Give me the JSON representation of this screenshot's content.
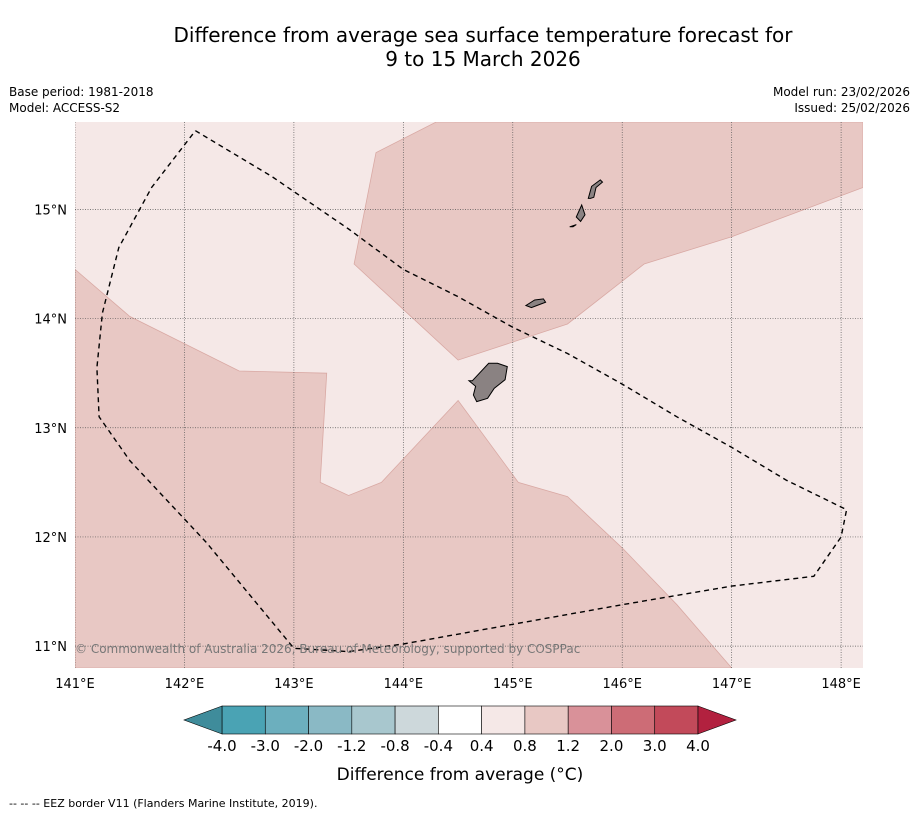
{
  "title": {
    "line1": "Difference from average sea surface temperature forecast for",
    "line2": "9 to 15 March 2026"
  },
  "meta": {
    "base_period": "Base period: 1981-2018",
    "model": "Model: ACCESS-S2",
    "model_run": "Model run: 23/02/2026",
    "issued": "Issued: 25/02/2026"
  },
  "map": {
    "lon_range": [
      141,
      148.2
    ],
    "lat_range": [
      10.8,
      15.8
    ],
    "lon_ticks": [
      {
        "value": 141,
        "label": "141°E"
      },
      {
        "value": 142,
        "label": "142°E"
      },
      {
        "value": 143,
        "label": "143°E"
      },
      {
        "value": 144,
        "label": "144°E"
      },
      {
        "value": 145,
        "label": "145°E"
      },
      {
        "value": 146,
        "label": "146°E"
      },
      {
        "value": 147,
        "label": "147°E"
      },
      {
        "value": 148,
        "label": "148°E"
      }
    ],
    "lat_ticks": [
      {
        "value": 15,
        "label": "15°N"
      },
      {
        "value": 14,
        "label": "14°N"
      },
      {
        "value": 13,
        "label": "13°N"
      },
      {
        "value": 12,
        "label": "12°N"
      },
      {
        "value": 11,
        "label": "11°N"
      }
    ],
    "background_category": "0.4 to 0.8",
    "regions": [
      {
        "name": "western-anomaly-region",
        "category": "0.8 to 1.2",
        "coords": [
          [
            141,
            14.45
          ],
          [
            141.5,
            14.02
          ],
          [
            142.5,
            13.52
          ],
          [
            143.3,
            13.5
          ],
          [
            143.24,
            12.5
          ],
          [
            143.5,
            12.38
          ],
          [
            143.8,
            12.5
          ],
          [
            144.5,
            13.25
          ],
          [
            145.05,
            12.5
          ],
          [
            145.5,
            12.37
          ],
          [
            146,
            11.9
          ],
          [
            146.5,
            11.38
          ],
          [
            147,
            10.8
          ],
          [
            141,
            10.8
          ]
        ]
      },
      {
        "name": "northern-anomaly-region",
        "category": "0.8 to 1.2",
        "coords": [
          [
            144.3,
            15.8
          ],
          [
            148.2,
            15.8
          ],
          [
            148.2,
            15.2
          ],
          [
            147,
            14.75
          ],
          [
            146.2,
            14.5
          ],
          [
            145.5,
            13.95
          ],
          [
            144.5,
            13.62
          ],
          [
            143.55,
            14.5
          ],
          [
            143.75,
            15.52
          ]
        ]
      }
    ],
    "islands": [
      {
        "name": "guam",
        "coords": [
          [
            144.63,
            13.43
          ],
          [
            144.78,
            13.59
          ],
          [
            144.86,
            13.59
          ],
          [
            144.95,
            13.56
          ],
          [
            144.93,
            13.44
          ],
          [
            144.83,
            13.36
          ],
          [
            144.77,
            13.27
          ],
          [
            144.67,
            13.24
          ],
          [
            144.64,
            13.3
          ],
          [
            144.66,
            13.38
          ],
          [
            144.6,
            13.43
          ]
        ]
      },
      {
        "name": "rota",
        "coords": [
          [
            145.12,
            14.12
          ],
          [
            145.2,
            14.17
          ],
          [
            145.28,
            14.18
          ],
          [
            145.3,
            14.15
          ],
          [
            145.22,
            14.12
          ],
          [
            145.17,
            14.1
          ]
        ]
      },
      {
        "name": "tinian",
        "coords": [
          [
            145.58,
            14.93
          ],
          [
            145.63,
            15.04
          ],
          [
            145.66,
            14.95
          ],
          [
            145.62,
            14.89
          ]
        ]
      },
      {
        "name": "saipan",
        "coords": [
          [
            145.69,
            15.1
          ],
          [
            145.72,
            15.21
          ],
          [
            145.8,
            15.27
          ],
          [
            145.82,
            15.25
          ],
          [
            145.76,
            15.2
          ],
          [
            145.74,
            15.11
          ],
          [
            145.71,
            15.1
          ]
        ]
      },
      {
        "name": "aguijan",
        "coords": [
          [
            145.52,
            14.84
          ],
          [
            145.58,
            14.86
          ],
          [
            145.55,
            14.84
          ]
        ]
      }
    ],
    "eez_border": [
      [
        142.1,
        15.72
      ],
      [
        142.8,
        15.3
      ],
      [
        143.5,
        14.82
      ],
      [
        144,
        14.45
      ],
      [
        144.5,
        14.2
      ],
      [
        145,
        13.92
      ],
      [
        145.5,
        13.68
      ],
      [
        146,
        13.4
      ],
      [
        146.5,
        13.1
      ],
      [
        147,
        12.82
      ],
      [
        147.5,
        12.52
      ],
      [
        148.05,
        12.25
      ],
      [
        148,
        12
      ],
      [
        147.75,
        11.64
      ],
      [
        147,
        11.55
      ],
      [
        146,
        11.38
      ],
      [
        145,
        11.2
      ],
      [
        144,
        11.02
      ],
      [
        143.5,
        10.95
      ],
      [
        143,
        10.98
      ],
      [
        142.2,
        11.95
      ],
      [
        141.5,
        12.7
      ],
      [
        141.22,
        13.1
      ],
      [
        141.2,
        13.55
      ],
      [
        141.25,
        14.05
      ],
      [
        141.4,
        14.65
      ],
      [
        141.7,
        15.2
      ],
      [
        142.1,
        15.72
      ]
    ]
  },
  "colorbar": {
    "categories": [
      {
        "range": "-4.0 to -3.0",
        "color": "#4aa3b4"
      },
      {
        "range": "-3.0 to -2.0",
        "color": "#6cafbe"
      },
      {
        "range": "-2.0 to -1.2",
        "color": "#8ab9c5"
      },
      {
        "range": "-1.2 to -0.8",
        "color": "#a8c7ce"
      },
      {
        "range": "-0.8 to -0.4",
        "color": "#cdd8db"
      },
      {
        "range": "-0.4 to 0.4",
        "color": "#ffffff"
      },
      {
        "range": "0.4 to 0.8",
        "color": "#f5e8e7"
      },
      {
        "range": "0.8 to 1.2",
        "color": "#e8c8c4"
      },
      {
        "range": "1.2 to 2.0",
        "color": "#d99199"
      },
      {
        "range": "2.0 to 3.0",
        "color": "#cd6c76"
      },
      {
        "range": "3.0 to 4.0",
        "color": "#c24a5a"
      }
    ],
    "extend_low_color": "#3f8c9b",
    "extend_high_color": "#b2213f",
    "tick_labels": [
      "-4.0",
      "-3.0",
      "-2.0",
      "-1.2",
      "-0.8",
      "-0.4",
      "0.4",
      "0.8",
      "1.2",
      "2.0",
      "3.0",
      "4.0"
    ],
    "label": "Difference from average (°C)"
  },
  "copyright": "© Commonwealth of Australia 2026, Bureau of Meteorology, supported by COSPPac",
  "footnote": "--  --  -- EEZ border V11 (Flanders Marine Institute, 2019).",
  "colors": {
    "land": "#8a8282",
    "grid": "#555555",
    "eez": "#000000"
  }
}
